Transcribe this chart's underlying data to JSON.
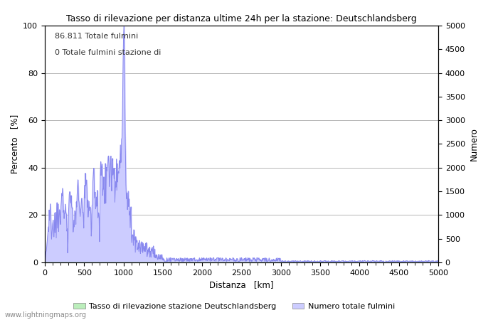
{
  "title": "Tasso di rilevazione per distanza ultime 24h per la stazione: Deutschlandsberg",
  "xlabel": "Distanza   [km]",
  "ylabel_left": "Percento   [%]",
  "ylabel_right": "Numero",
  "annotation_line1": "86.811 Totale fulmini",
  "annotation_line2": "0 Totale fulmini stazione di",
  "xlim": [
    0,
    5000
  ],
  "ylim_left": [
    0,
    100
  ],
  "ylim_right": [
    0,
    5000
  ],
  "xticks": [
    0,
    500,
    1000,
    1500,
    2000,
    2500,
    3000,
    3500,
    4000,
    4500,
    5000
  ],
  "yticks_left": [
    0,
    20,
    40,
    60,
    80,
    100
  ],
  "yticks_right": [
    0,
    500,
    1000,
    1500,
    2000,
    2500,
    3000,
    3500,
    4000,
    4500,
    5000
  ],
  "legend_label_green": "Tasso di rilevazione stazione Deutschlandsberg",
  "legend_label_blue": "Numero totale fulmini",
  "watermark": "www.lightningmaps.org",
  "fill_green_color": "#bbeebb",
  "fill_blue_color": "#ccccff",
  "line_blue_color": "#8888ee",
  "background_color": "#ffffff",
  "grid_color": "#aaaaaa"
}
